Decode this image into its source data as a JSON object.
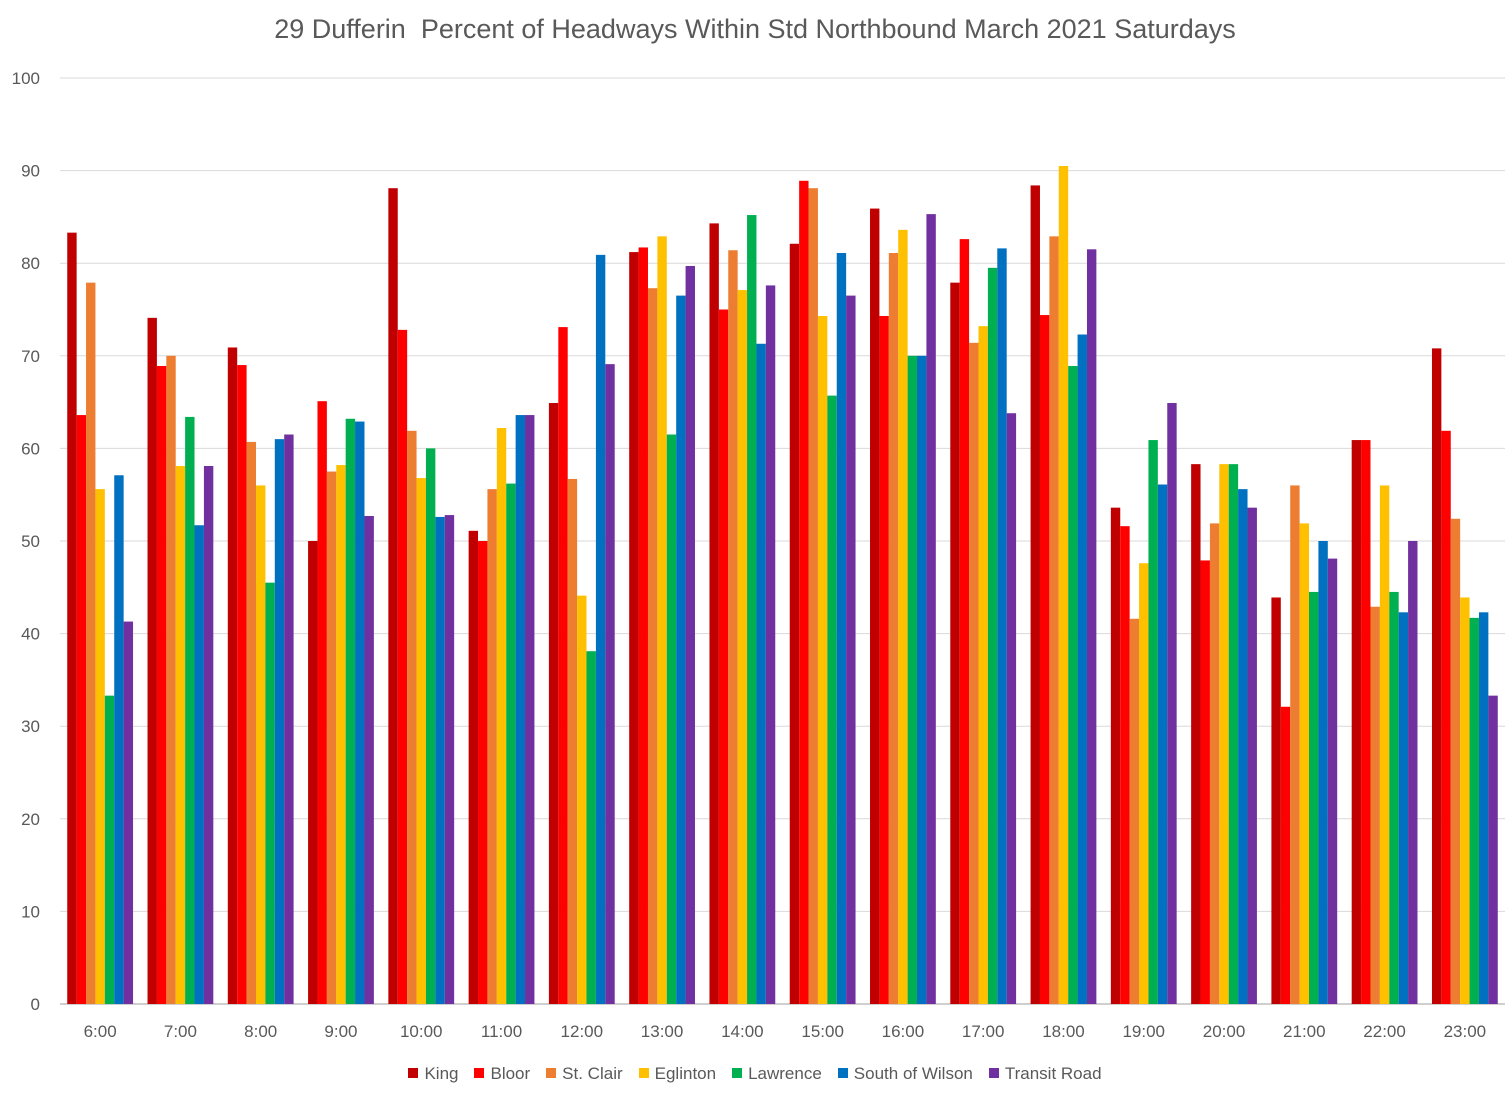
{
  "chart_data": {
    "type": "bar",
    "title": "29 Dufferin  Percent of Headways Within Std Northbound March 2021 Saturdays",
    "xlabel": "",
    "ylabel": "",
    "ylim": [
      0,
      100
    ],
    "yticks": [
      0,
      10,
      20,
      30,
      40,
      50,
      60,
      70,
      80,
      90,
      100
    ],
    "grid": true,
    "legend_position": "bottom",
    "categories": [
      "6:00",
      "7:00",
      "8:00",
      "9:00",
      "10:00",
      "11:00",
      "12:00",
      "13:00",
      "14:00",
      "15:00",
      "16:00",
      "17:00",
      "18:00",
      "19:00",
      "20:00",
      "21:00",
      "22:00",
      "23:00"
    ],
    "series": [
      {
        "name": "King",
        "color": "#C00000",
        "values": [
          83.3,
          74.1,
          70.9,
          50.0,
          88.1,
          51.1,
          64.9,
          81.2,
          84.3,
          82.1,
          85.9,
          77.9,
          88.4,
          53.6,
          58.3,
          43.9,
          60.9,
          70.8
        ]
      },
      {
        "name": "Bloor",
        "color": "#FF0000",
        "values": [
          63.6,
          68.9,
          69.0,
          65.1,
          72.8,
          50.0,
          73.1,
          81.7,
          75.0,
          88.9,
          74.3,
          82.6,
          74.4,
          51.6,
          47.9,
          32.1,
          60.9,
          61.9
        ]
      },
      {
        "name": "St. Clair",
        "color": "#ED7D31",
        "values": [
          77.9,
          70.0,
          60.7,
          57.5,
          61.9,
          55.6,
          56.7,
          77.3,
          81.4,
          88.1,
          81.1,
          71.4,
          82.9,
          41.6,
          51.9,
          56.0,
          42.9,
          52.4
        ]
      },
      {
        "name": "Eglinton",
        "color": "#FFC000",
        "values": [
          55.6,
          58.1,
          56.0,
          58.2,
          56.8,
          62.2,
          44.1,
          82.9,
          77.1,
          74.3,
          83.6,
          73.2,
          90.5,
          47.6,
          58.3,
          51.9,
          56.0,
          43.9
        ]
      },
      {
        "name": "Lawrence",
        "color": "#00B050",
        "values": [
          33.3,
          63.4,
          45.5,
          63.2,
          60.0,
          56.2,
          38.1,
          61.5,
          85.2,
          65.7,
          70.0,
          79.5,
          68.9,
          60.9,
          58.3,
          44.5,
          44.5,
          41.7
        ]
      },
      {
        "name": "South of Wilson",
        "color": "#0070C0",
        "values": [
          57.1,
          51.7,
          61.0,
          62.9,
          52.6,
          63.6,
          80.9,
          76.5,
          71.3,
          81.1,
          70.0,
          81.6,
          72.3,
          56.1,
          55.6,
          50.0,
          42.3,
          42.3
        ]
      },
      {
        "name": "Transit Road",
        "color": "#7030A0",
        "values": [
          41.3,
          58.1,
          61.5,
          52.7,
          52.8,
          63.6,
          69.1,
          79.7,
          77.6,
          76.5,
          85.3,
          63.8,
          81.5,
          64.9,
          53.6,
          48.1,
          50.0,
          33.3
        ]
      }
    ]
  }
}
